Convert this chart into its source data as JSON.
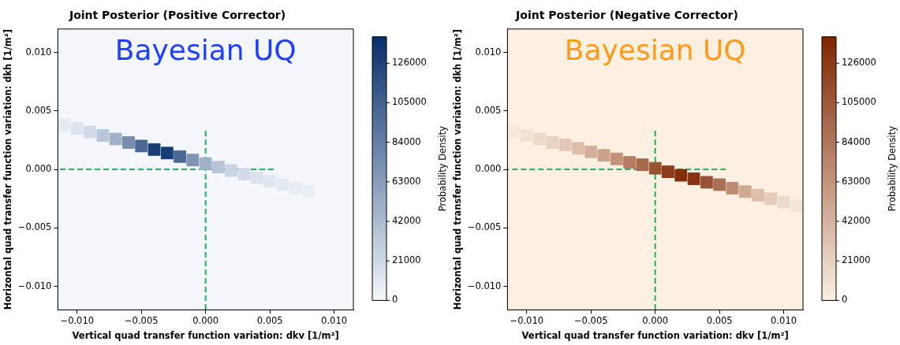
{
  "chart_data": [
    {
      "type": "scatter",
      "title": "Joint Posterior (Positive Corrector)",
      "xlabel": "Vertical quad transfer function variation: dkv [1/m²]",
      "ylabel": "Horizontal quad transfer function variation: dkh [1/m²]",
      "clabel": "Probability Density",
      "annotations": [
        "Bayesian UQ"
      ],
      "xlim": [
        -0.0115,
        0.0115
      ],
      "ylim": [
        -0.012,
        0.012
      ],
      "xticks": [
        {
          "value": -0.01,
          "label": "−0.010"
        },
        {
          "value": -0.005,
          "label": "−0.005"
        },
        {
          "value": 0,
          "label": "0.000"
        },
        {
          "value": 0.005,
          "label": "0.005"
        },
        {
          "value": 0.01,
          "label": "0.010"
        }
      ],
      "yticks": [
        {
          "value": -0.01,
          "label": "−0.010"
        },
        {
          "value": -0.005,
          "label": "−0.005"
        },
        {
          "value": 0,
          "label": "0.000"
        },
        {
          "value": 0.005,
          "label": "0.005"
        },
        {
          "value": 0.01,
          "label": "0.010"
        }
      ],
      "clim": [
        0,
        140000
      ],
      "cticks": [
        0,
        21000,
        42000,
        63000,
        84000,
        105000,
        126000
      ],
      "grid": false,
      "legend": false,
      "marker": "square",
      "series": [
        {
          "x": [
            -0.011,
            -0.01,
            -0.009,
            -0.008,
            -0.007,
            -0.006,
            -0.005,
            -0.004,
            -0.003,
            -0.002,
            -0.001,
            0,
            0.001,
            0.002,
            0.003,
            0.004,
            0.005,
            0.006,
            0.007,
            0.008
          ],
          "values": [
            0.0038,
            0.0035,
            0.0032,
            0.0029,
            0.0026,
            0.0023,
            0.002,
            0.0017,
            0.0014,
            0.0011,
            0.0008,
            0.0005,
            0.0002,
            -0.0001,
            -0.0004,
            -0.0007,
            -0.001,
            -0.0013,
            -0.0016,
            -0.0019
          ],
          "cvalues": [
            10000,
            14000,
            20000,
            35000,
            50000,
            75000,
            100000,
            130000,
            130000,
            100000,
            70000,
            50000,
            35000,
            25000,
            20000,
            15000,
            12000,
            10000,
            8000,
            6000
          ],
          "colors": [
            "#e3eaf2",
            "#dce4ee",
            "#d2dbe7",
            "#b9c6d8",
            "#a0b1c8",
            "#768dae",
            "#4b6994",
            "#193e75",
            "#193e75",
            "#4b6994",
            "#7e94b4",
            "#a0b1c8",
            "#b9c6d8",
            "#cad4e2",
            "#d2dbe7",
            "#dbe3ec",
            "#e0e7f0",
            "#e3eaf2",
            "#e7edf4",
            "#eaeff6"
          ]
        },
        {
          "type": "line",
          "color": "#1db35a",
          "marker": "none",
          "line_style": "dashed",
          "x": [
            0.0053,
            -0.0115
          ],
          "values": [
            0,
            0
          ]
        },
        {
          "type": "line",
          "color": "#1db35a",
          "marker": "none",
          "line_style": "dashed",
          "x": [
            0,
            0
          ],
          "values": [
            0.0033,
            -0.012
          ]
        }
      ]
    },
    {
      "type": "scatter",
      "title": "Joint Posterior (Negative Corrector)",
      "xlabel": "Vertical quad transfer function variation: dkv [1/m²]",
      "ylabel": "Horizontal quad transfer function variation: dkh [1/m²]",
      "clabel": "Probability Density",
      "annotations": [
        "Bayesian UQ"
      ],
      "xlim": [
        -0.0115,
        0.0115
      ],
      "ylim": [
        -0.012,
        0.012
      ],
      "xticks": [
        {
          "value": -0.01,
          "label": "−0.010"
        },
        {
          "value": -0.005,
          "label": "−0.005"
        },
        {
          "value": 0,
          "label": "0.000"
        },
        {
          "value": 0.005,
          "label": "0.005"
        },
        {
          "value": 0.01,
          "label": "0.010"
        }
      ],
      "yticks": [
        {
          "value": -0.01,
          "label": "−0.010"
        },
        {
          "value": -0.005,
          "label": "−0.005"
        },
        {
          "value": 0,
          "label": "0.000"
        },
        {
          "value": 0.005,
          "label": "0.005"
        },
        {
          "value": 0.01,
          "label": "0.010"
        }
      ],
      "clim": [
        0,
        140000
      ],
      "cticks": [
        0,
        21000,
        42000,
        63000,
        84000,
        105000,
        126000
      ],
      "grid": false,
      "legend": false,
      "marker": "square",
      "series": [
        {
          "x": [
            -0.011,
            -0.01,
            -0.009,
            -0.008,
            -0.007,
            -0.006,
            -0.005,
            -0.004,
            -0.003,
            -0.002,
            -0.001,
            0,
            0.001,
            0.002,
            0.003,
            0.004,
            0.005,
            0.006,
            0.007,
            0.008,
            0.009,
            0.01,
            0.011
          ],
          "values": [
            0.0032,
            0.0029,
            0.0026,
            0.0023,
            0.0021,
            0.0018,
            0.0015,
            0.0012,
            0.0009,
            0.0006,
            0.0004,
            0.0001,
            -0.0002,
            -0.0005,
            -0.0008,
            -0.0011,
            -0.0013,
            -0.0016,
            -0.0019,
            -0.0022,
            -0.0025,
            -0.0028,
            -0.0031
          ],
          "cvalues": [
            5000,
            10000,
            15000,
            20000,
            28000,
            35000,
            45000,
            55000,
            65000,
            80000,
            95000,
            110000,
            125000,
            135000,
            130000,
            110000,
            90000,
            70000,
            50000,
            35000,
            25000,
            15000,
            8000
          ],
          "colors": [
            "#f7e9da",
            "#f2e2d2",
            "#eedaca",
            "#e9d3c2",
            "#e2c8b6",
            "#dcbeab",
            "#d3af9b",
            "#caa18b",
            "#c1937b",
            "#b47d63",
            "#a7684b",
            "#9a5234",
            "#8c3d1c",
            "#832e0c",
            "#883514",
            "#9a5234",
            "#ab6f53",
            "#bd8c73",
            "#cfa893",
            "#dcbeab",
            "#e5ccba",
            "#eedaca",
            "#f4e5d5"
          ]
        },
        {
          "type": "line",
          "color": "#1db35a",
          "marker": "none",
          "line_style": "dashed",
          "x": [
            0.0055,
            -0.0115
          ],
          "values": [
            0,
            0
          ]
        },
        {
          "type": "line",
          "color": "#1db35a",
          "marker": "none",
          "line_style": "dashed",
          "x": [
            0,
            0
          ],
          "values": [
            0.0033,
            -0.012
          ]
        }
      ]
    }
  ]
}
